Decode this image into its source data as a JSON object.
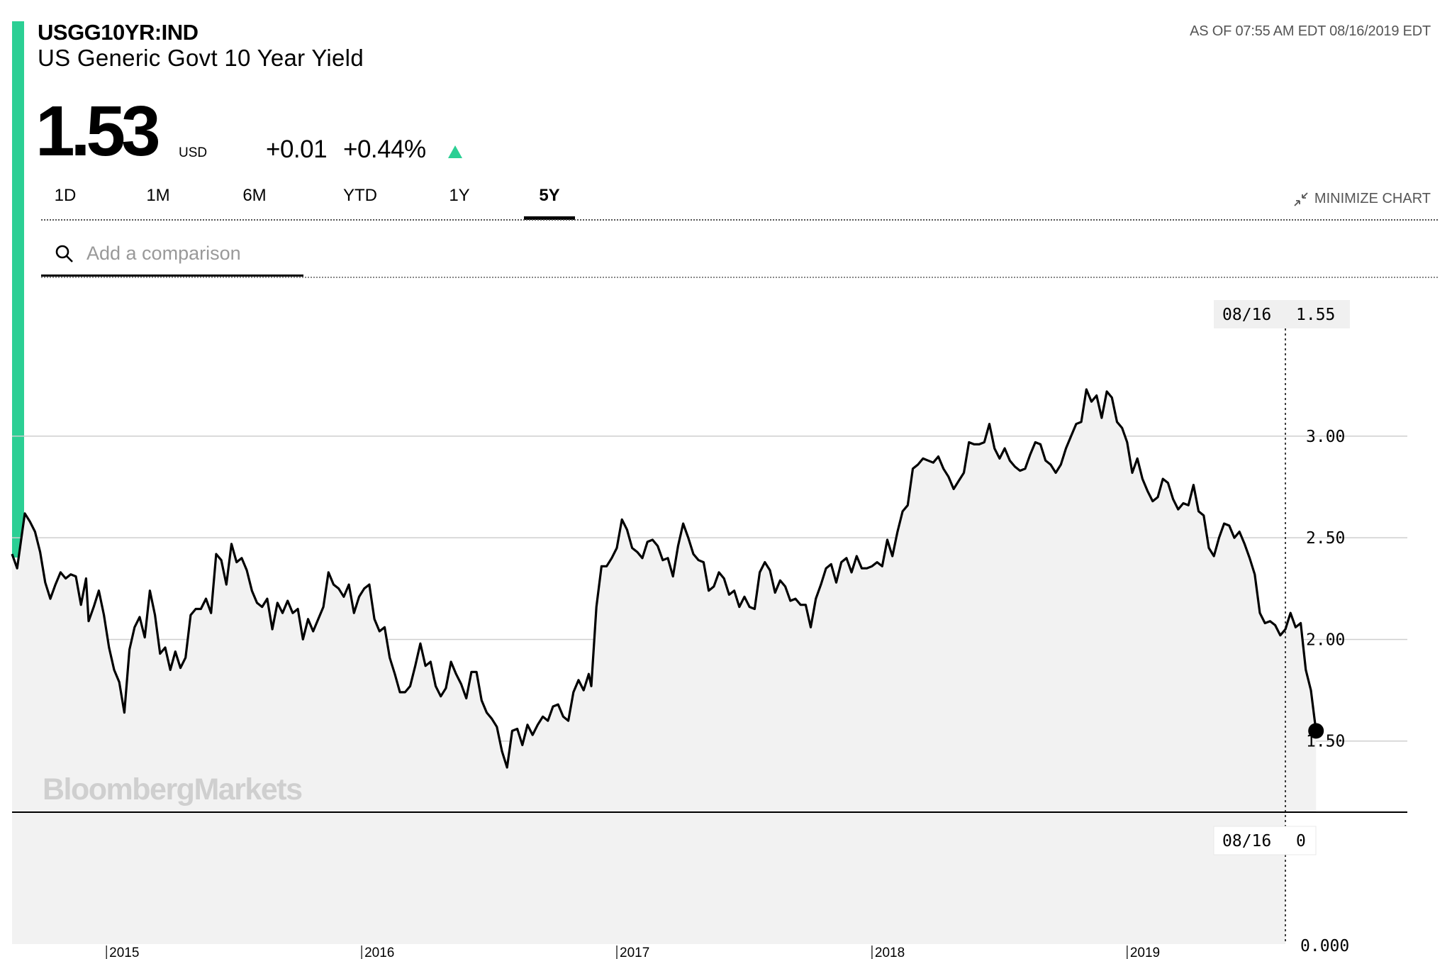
{
  "header": {
    "ticker": "USGG10YR:IND",
    "name": "US Generic Govt 10 Year Yield",
    "as_of": "AS OF 07:55 AM EDT 08/16/2019 EDT",
    "accent_color": "#2bcf94"
  },
  "quote": {
    "price": "1.53",
    "currency": "USD",
    "change": "+0.01",
    "change_pct": "+0.44%",
    "direction_icon": "up-triangle-icon"
  },
  "range_tabs": [
    {
      "label": "1D",
      "active": false
    },
    {
      "label": "1M",
      "active": false
    },
    {
      "label": "6M",
      "active": false
    },
    {
      "label": "YTD",
      "active": false
    },
    {
      "label": "1Y",
      "active": false
    },
    {
      "label": "5Y",
      "active": true
    }
  ],
  "minimize": {
    "label": "MINIMIZE CHART",
    "icon": "minimize-arrows-icon"
  },
  "comparison": {
    "placeholder": "Add a comparison",
    "value": "",
    "icon": "search-icon"
  },
  "watermark": "BloombergMarkets",
  "crosshair": {
    "date": "08/16",
    "value": "1.55",
    "volume_date": "08/16",
    "volume_value": "0"
  },
  "chart_data": {
    "type": "line",
    "fill": "area",
    "line_color": "#000000",
    "fill_color": "#f2f2f2",
    "y_ticks": [
      "3.00",
      "2.50",
      "2.00",
      "1.50"
    ],
    "y_tick_values": [
      3.0,
      2.5,
      2.0,
      1.5
    ],
    "ylim": [
      1.15,
      3.75
    ],
    "volume_axis_label": "0.000",
    "x_ticks": [
      "2015",
      "2016",
      "2017",
      "2018",
      "2019"
    ],
    "x_tick_dates": [
      2015.0,
      2016.0,
      2017.0,
      2018.0,
      2019.0
    ],
    "xlim": [
      2014.63,
      2019.62
    ],
    "grid": "horizontal",
    "series": [
      {
        "values": [
          [
            2014.63,
            2.42
          ],
          [
            2014.65,
            2.35
          ],
          [
            2014.68,
            2.62
          ],
          [
            2014.7,
            2.58
          ],
          [
            2014.72,
            2.53
          ],
          [
            2014.74,
            2.43
          ],
          [
            2014.76,
            2.28
          ],
          [
            2014.78,
            2.2
          ],
          [
            2014.8,
            2.27
          ],
          [
            2014.82,
            2.33
          ],
          [
            2014.84,
            2.3
          ],
          [
            2014.86,
            2.32
          ],
          [
            2014.88,
            2.31
          ],
          [
            2014.9,
            2.17
          ],
          [
            2014.92,
            2.3
          ],
          [
            2014.93,
            2.09
          ],
          [
            2014.95,
            2.16
          ],
          [
            2014.97,
            2.24
          ],
          [
            2014.99,
            2.12
          ],
          [
            2015.01,
            1.96
          ],
          [
            2015.03,
            1.85
          ],
          [
            2015.05,
            1.79
          ],
          [
            2015.07,
            1.64
          ],
          [
            2015.09,
            1.95
          ],
          [
            2015.11,
            2.06
          ],
          [
            2015.13,
            2.11
          ],
          [
            2015.15,
            2.01
          ],
          [
            2015.17,
            2.24
          ],
          [
            2015.19,
            2.12
          ],
          [
            2015.21,
            1.93
          ],
          [
            2015.23,
            1.96
          ],
          [
            2015.25,
            1.85
          ],
          [
            2015.27,
            1.94
          ],
          [
            2015.29,
            1.86
          ],
          [
            2015.31,
            1.91
          ],
          [
            2015.33,
            2.12
          ],
          [
            2015.35,
            2.15
          ],
          [
            2015.37,
            2.15
          ],
          [
            2015.39,
            2.2
          ],
          [
            2015.41,
            2.13
          ],
          [
            2015.43,
            2.42
          ],
          [
            2015.45,
            2.39
          ],
          [
            2015.47,
            2.27
          ],
          [
            2015.49,
            2.47
          ],
          [
            2015.51,
            2.38
          ],
          [
            2015.53,
            2.4
          ],
          [
            2015.55,
            2.34
          ],
          [
            2015.57,
            2.24
          ],
          [
            2015.59,
            2.18
          ],
          [
            2015.61,
            2.16
          ],
          [
            2015.63,
            2.2
          ],
          [
            2015.65,
            2.05
          ],
          [
            2015.67,
            2.18
          ],
          [
            2015.69,
            2.13
          ],
          [
            2015.71,
            2.19
          ],
          [
            2015.73,
            2.13
          ],
          [
            2015.75,
            2.15
          ],
          [
            2015.77,
            2.0
          ],
          [
            2015.79,
            2.1
          ],
          [
            2015.81,
            2.04
          ],
          [
            2015.83,
            2.1
          ],
          [
            2015.85,
            2.16
          ],
          [
            2015.87,
            2.33
          ],
          [
            2015.89,
            2.27
          ],
          [
            2015.91,
            2.25
          ],
          [
            2015.93,
            2.21
          ],
          [
            2015.95,
            2.27
          ],
          [
            2015.97,
            2.13
          ],
          [
            2015.99,
            2.21
          ],
          [
            2016.01,
            2.25
          ],
          [
            2016.03,
            2.27
          ],
          [
            2016.05,
            2.1
          ],
          [
            2016.07,
            2.04
          ],
          [
            2016.09,
            2.06
          ],
          [
            2016.11,
            1.91
          ],
          [
            2016.13,
            1.83
          ],
          [
            2016.15,
            1.74
          ],
          [
            2016.17,
            1.74
          ],
          [
            2016.19,
            1.77
          ],
          [
            2016.21,
            1.87
          ],
          [
            2016.23,
            1.98
          ],
          [
            2016.25,
            1.87
          ],
          [
            2016.27,
            1.89
          ],
          [
            2016.29,
            1.77
          ],
          [
            2016.31,
            1.72
          ],
          [
            2016.33,
            1.76
          ],
          [
            2016.35,
            1.89
          ],
          [
            2016.37,
            1.83
          ],
          [
            2016.39,
            1.78
          ],
          [
            2016.41,
            1.71
          ],
          [
            2016.43,
            1.84
          ],
          [
            2016.45,
            1.84
          ],
          [
            2016.47,
            1.7
          ],
          [
            2016.49,
            1.64
          ],
          [
            2016.51,
            1.61
          ],
          [
            2016.53,
            1.57
          ],
          [
            2016.55,
            1.45
          ],
          [
            2016.57,
            1.37
          ],
          [
            2016.59,
            1.55
          ],
          [
            2016.61,
            1.56
          ],
          [
            2016.63,
            1.48
          ],
          [
            2016.65,
            1.58
          ],
          [
            2016.67,
            1.53
          ],
          [
            2016.69,
            1.58
          ],
          [
            2016.71,
            1.62
          ],
          [
            2016.73,
            1.6
          ],
          [
            2016.75,
            1.67
          ],
          [
            2016.77,
            1.68
          ],
          [
            2016.79,
            1.62
          ],
          [
            2016.81,
            1.6
          ],
          [
            2016.83,
            1.74
          ],
          [
            2016.85,
            1.8
          ],
          [
            2016.87,
            1.75
          ],
          [
            2016.89,
            1.83
          ],
          [
            2016.9,
            1.77
          ],
          [
            2016.92,
            2.16
          ],
          [
            2016.94,
            2.36
          ],
          [
            2016.96,
            2.36
          ],
          [
            2016.98,
            2.4
          ],
          [
            2017.0,
            2.45
          ],
          [
            2017.02,
            2.59
          ],
          [
            2017.04,
            2.54
          ],
          [
            2017.06,
            2.45
          ],
          [
            2017.08,
            2.43
          ],
          [
            2017.1,
            2.4
          ],
          [
            2017.12,
            2.48
          ],
          [
            2017.14,
            2.49
          ],
          [
            2017.16,
            2.46
          ],
          [
            2017.18,
            2.39
          ],
          [
            2017.2,
            2.4
          ],
          [
            2017.22,
            2.31
          ],
          [
            2017.24,
            2.46
          ],
          [
            2017.26,
            2.57
          ],
          [
            2017.28,
            2.5
          ],
          [
            2017.3,
            2.42
          ],
          [
            2017.32,
            2.39
          ],
          [
            2017.34,
            2.38
          ],
          [
            2017.36,
            2.24
          ],
          [
            2017.38,
            2.26
          ],
          [
            2017.4,
            2.33
          ],
          [
            2017.42,
            2.3
          ],
          [
            2017.44,
            2.22
          ],
          [
            2017.46,
            2.24
          ],
          [
            2017.48,
            2.16
          ],
          [
            2017.5,
            2.21
          ],
          [
            2017.52,
            2.16
          ],
          [
            2017.54,
            2.15
          ],
          [
            2017.56,
            2.33
          ],
          [
            2017.58,
            2.38
          ],
          [
            2017.6,
            2.34
          ],
          [
            2017.62,
            2.23
          ],
          [
            2017.64,
            2.29
          ],
          [
            2017.66,
            2.26
          ],
          [
            2017.68,
            2.19
          ],
          [
            2017.7,
            2.2
          ],
          [
            2017.72,
            2.17
          ],
          [
            2017.74,
            2.17
          ],
          [
            2017.76,
            2.06
          ],
          [
            2017.78,
            2.2
          ],
          [
            2017.8,
            2.27
          ],
          [
            2017.82,
            2.35
          ],
          [
            2017.84,
            2.37
          ],
          [
            2017.86,
            2.28
          ],
          [
            2017.88,
            2.38
          ],
          [
            2017.9,
            2.4
          ],
          [
            2017.92,
            2.33
          ],
          [
            2017.94,
            2.41
          ],
          [
            2017.96,
            2.35
          ],
          [
            2017.98,
            2.35
          ],
          [
            2018.0,
            2.36
          ],
          [
            2018.02,
            2.38
          ],
          [
            2018.04,
            2.36
          ],
          [
            2018.06,
            2.49
          ],
          [
            2018.08,
            2.41
          ],
          [
            2018.1,
            2.53
          ],
          [
            2018.12,
            2.63
          ],
          [
            2018.14,
            2.66
          ],
          [
            2018.16,
            2.84
          ],
          [
            2018.18,
            2.86
          ],
          [
            2018.2,
            2.89
          ],
          [
            2018.22,
            2.88
          ],
          [
            2018.24,
            2.87
          ],
          [
            2018.26,
            2.9
          ],
          [
            2018.28,
            2.84
          ],
          [
            2018.3,
            2.8
          ],
          [
            2018.32,
            2.74
          ],
          [
            2018.34,
            2.78
          ],
          [
            2018.36,
            2.82
          ],
          [
            2018.38,
            2.97
          ],
          [
            2018.4,
            2.96
          ],
          [
            2018.42,
            2.96
          ],
          [
            2018.44,
            2.97
          ],
          [
            2018.46,
            3.06
          ],
          [
            2018.48,
            2.94
          ],
          [
            2018.5,
            2.89
          ],
          [
            2018.52,
            2.94
          ],
          [
            2018.54,
            2.88
          ],
          [
            2018.56,
            2.85
          ],
          [
            2018.58,
            2.83
          ],
          [
            2018.6,
            2.84
          ],
          [
            2018.62,
            2.91
          ],
          [
            2018.64,
            2.97
          ],
          [
            2018.66,
            2.96
          ],
          [
            2018.68,
            2.88
          ],
          [
            2018.7,
            2.86
          ],
          [
            2018.72,
            2.82
          ],
          [
            2018.74,
            2.86
          ],
          [
            2018.76,
            2.94
          ],
          [
            2018.78,
            3.0
          ],
          [
            2018.8,
            3.06
          ],
          [
            2018.82,
            3.07
          ],
          [
            2018.84,
            3.23
          ],
          [
            2018.86,
            3.17
          ],
          [
            2018.88,
            3.2
          ],
          [
            2018.9,
            3.09
          ],
          [
            2018.92,
            3.22
          ],
          [
            2018.94,
            3.19
          ],
          [
            2018.96,
            3.07
          ],
          [
            2018.98,
            3.04
          ],
          [
            2019.0,
            2.97
          ],
          [
            2019.02,
            2.82
          ],
          [
            2019.04,
            2.89
          ],
          [
            2019.06,
            2.79
          ],
          [
            2019.08,
            2.73
          ],
          [
            2019.1,
            2.68
          ],
          [
            2019.12,
            2.7
          ],
          [
            2019.14,
            2.79
          ],
          [
            2019.16,
            2.77
          ],
          [
            2019.18,
            2.69
          ],
          [
            2019.2,
            2.64
          ],
          [
            2019.22,
            2.67
          ],
          [
            2019.24,
            2.66
          ],
          [
            2019.26,
            2.76
          ],
          [
            2019.28,
            2.63
          ],
          [
            2019.3,
            2.61
          ],
          [
            2019.32,
            2.45
          ],
          [
            2019.34,
            2.41
          ],
          [
            2019.36,
            2.5
          ],
          [
            2019.38,
            2.57
          ],
          [
            2019.4,
            2.56
          ],
          [
            2019.42,
            2.5
          ],
          [
            2019.44,
            2.53
          ],
          [
            2019.46,
            2.47
          ],
          [
            2019.48,
            2.4
          ],
          [
            2019.5,
            2.32
          ],
          [
            2019.52,
            2.13
          ],
          [
            2019.54,
            2.08
          ],
          [
            2019.56,
            2.09
          ],
          [
            2019.58,
            2.07
          ],
          [
            2019.6,
            2.02
          ],
          [
            2019.62,
            2.05
          ],
          [
            2019.64,
            2.13
          ],
          [
            2019.66,
            2.06
          ],
          [
            2019.68,
            2.08
          ],
          [
            2019.7,
            1.85
          ],
          [
            2019.72,
            1.75
          ],
          [
            2019.74,
            1.55
          ]
        ]
      }
    ]
  }
}
